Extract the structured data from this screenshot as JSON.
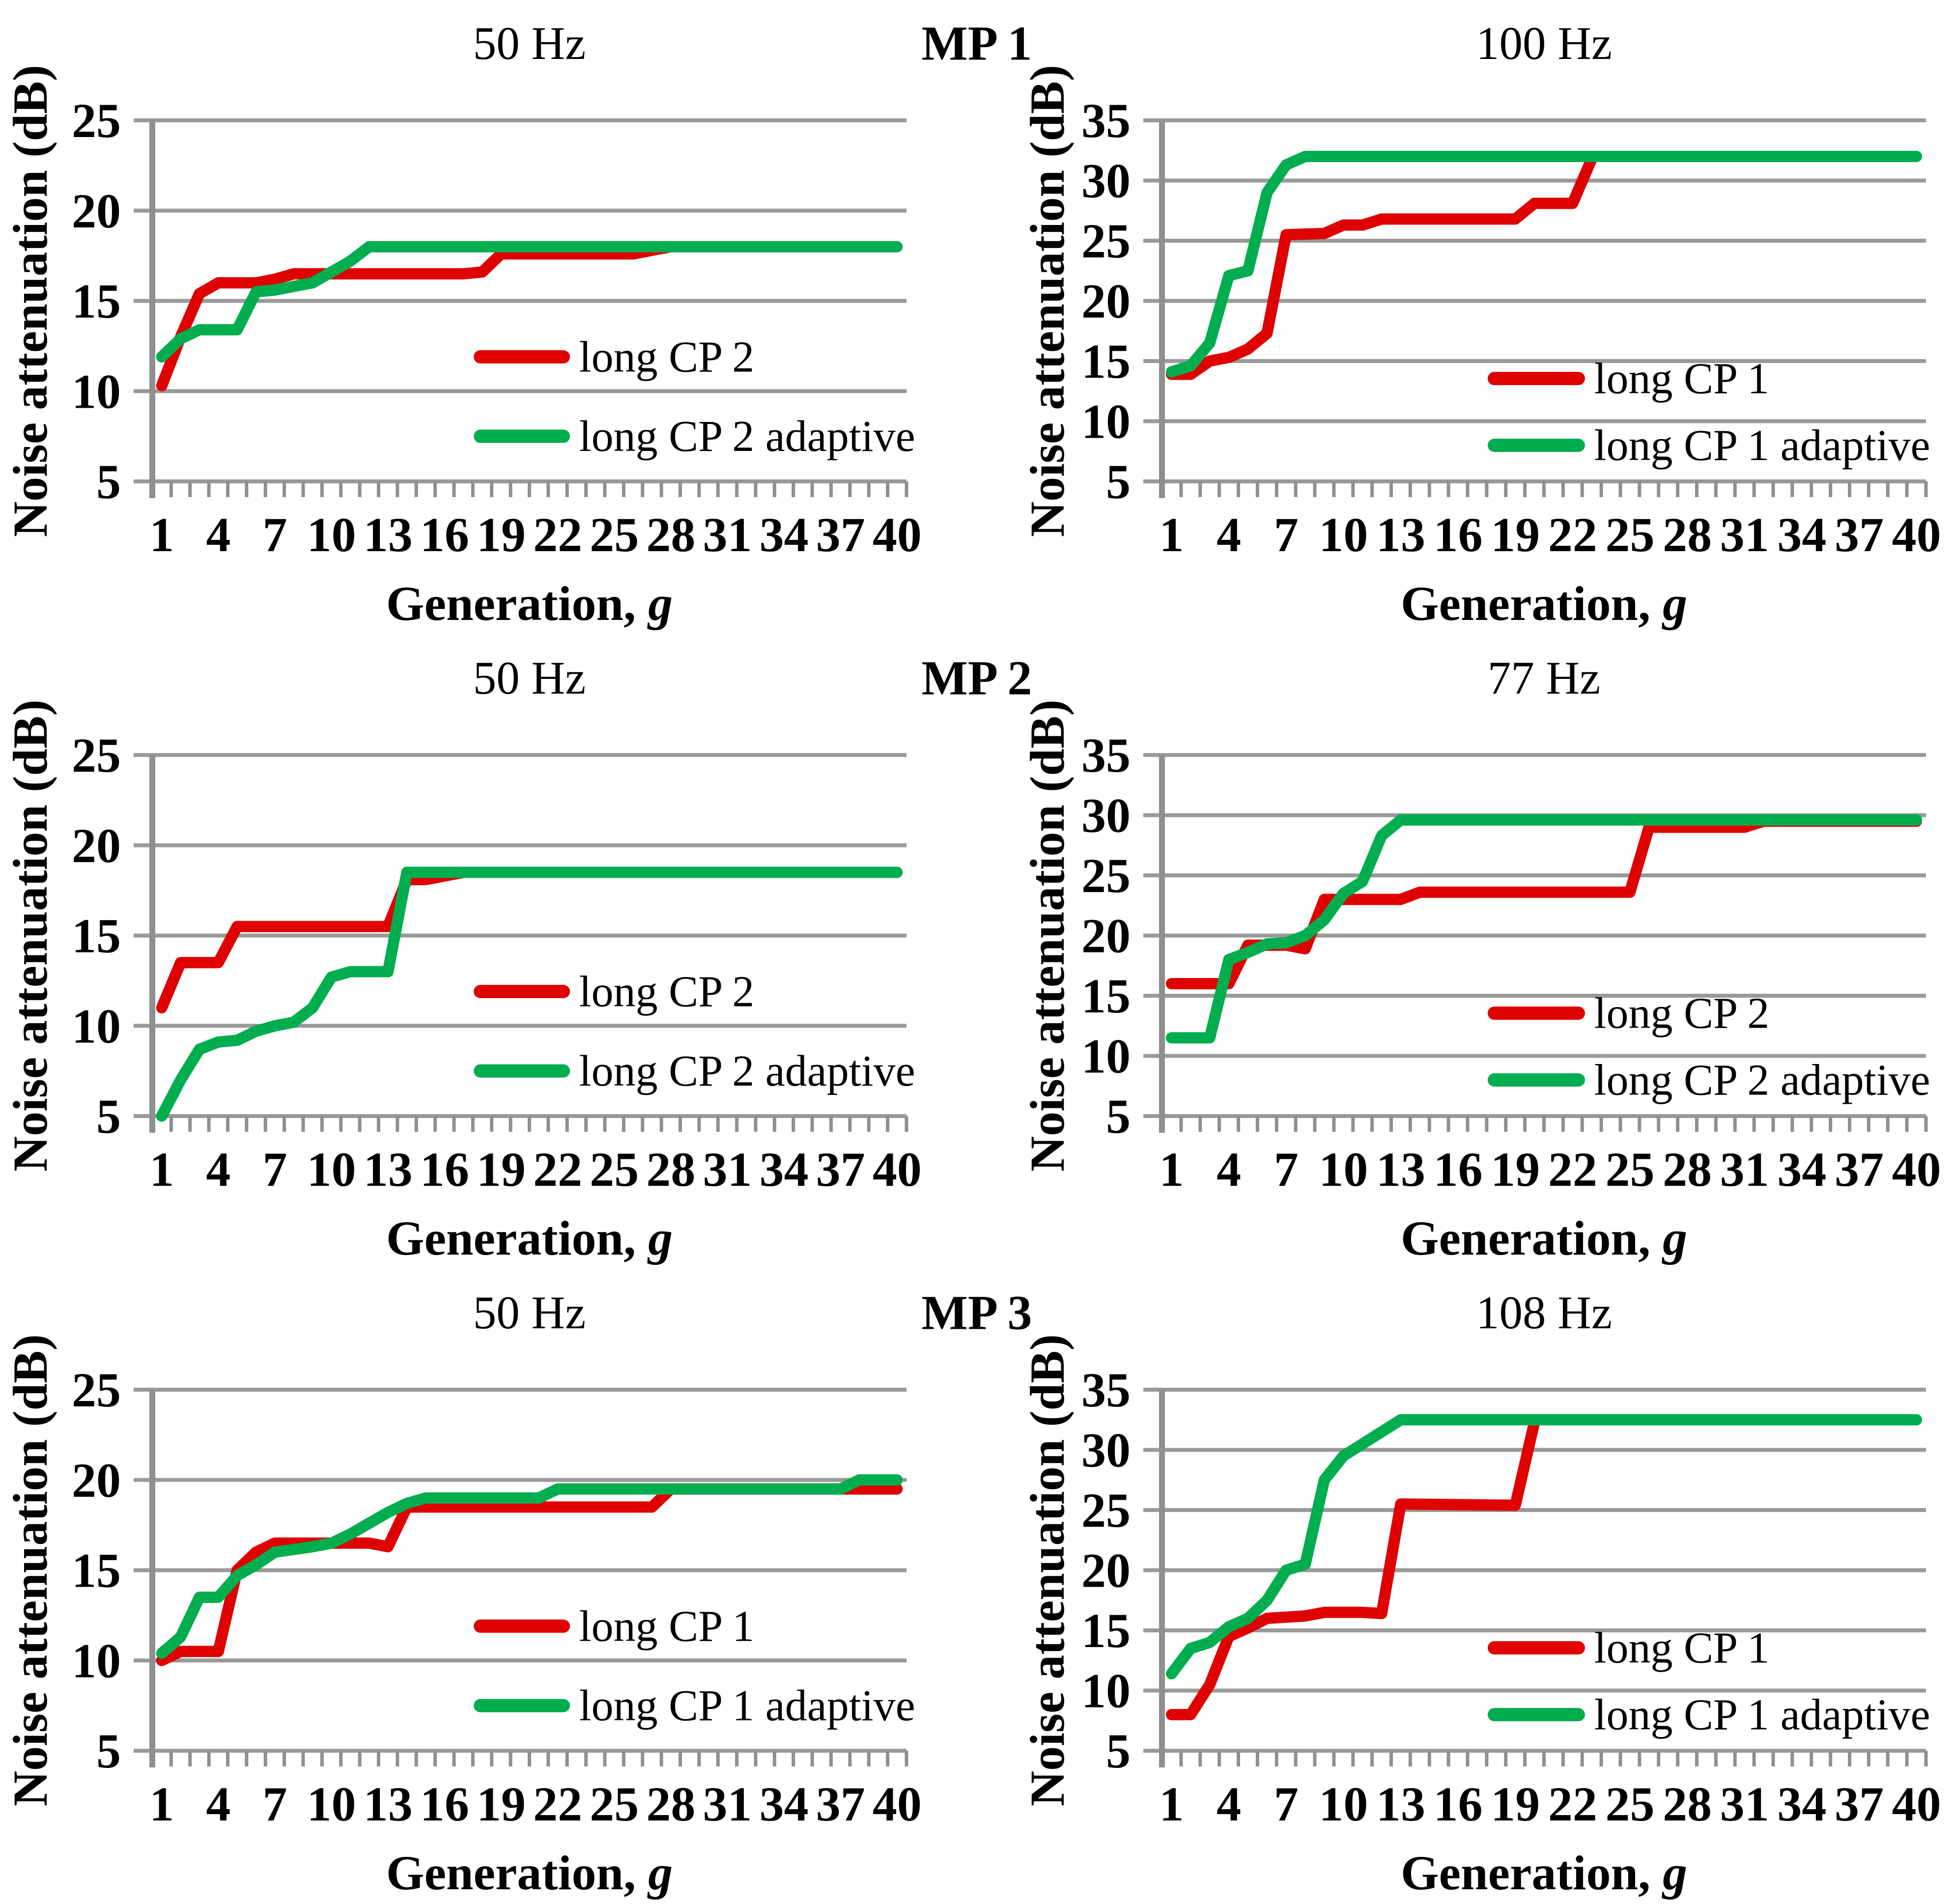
{
  "page": {
    "mp_labels": [
      "MP 1",
      "MP 2",
      "MP 3"
    ]
  },
  "colors": {
    "red": "#df0000",
    "green": "#00ad4f",
    "grid": "#999999",
    "axis": "#8f8f8f",
    "text": "#000000"
  },
  "chart_data": [
    {
      "id": "c1",
      "type": "line",
      "row": 0,
      "col": "left",
      "title": "50 Hz",
      "ylabel": "Noise attenuation (dB)",
      "xlabel": "Generation,",
      "xlabel_var": "g",
      "ylim": [
        5,
        25
      ],
      "yticks": [
        5,
        10,
        15,
        20,
        25
      ],
      "xlim": [
        1,
        40
      ],
      "xticks": [
        1,
        4,
        7,
        10,
        13,
        16,
        19,
        22,
        25,
        28,
        31,
        34,
        37,
        40
      ],
      "grid": true,
      "legend_position": "inside-lower-right",
      "series": [
        {
          "name": "long CP 2",
          "color": "red",
          "points": [
            [
              1,
              10.3
            ],
            [
              2,
              13
            ],
            [
              3,
              15.4
            ],
            [
              4,
              16
            ],
            [
              6,
              16
            ],
            [
              7,
              16.2
            ],
            [
              8,
              16.5
            ],
            [
              17,
              16.5
            ],
            [
              18,
              16.6
            ],
            [
              19,
              17.6
            ],
            [
              26,
              17.6
            ],
            [
              27,
              17.8
            ],
            [
              28,
              18
            ]
          ]
        },
        {
          "name": "long CP 2 adaptive",
          "color": "green",
          "points": [
            [
              1,
              11.9
            ],
            [
              2,
              12.9
            ],
            [
              3,
              13.4
            ],
            [
              5,
              13.4
            ],
            [
              6,
              15.5
            ],
            [
              7,
              15.6
            ],
            [
              8,
              15.8
            ],
            [
              9,
              16
            ],
            [
              10,
              16.6
            ],
            [
              11,
              17.2
            ],
            [
              12,
              18
            ],
            [
              40,
              18
            ]
          ]
        }
      ]
    },
    {
      "id": "c2",
      "type": "line",
      "row": 0,
      "col": "right",
      "title": "100 Hz",
      "ylabel": "Noise attenuation (dB)",
      "xlabel": "Generation,",
      "xlabel_var": "g",
      "ylim": [
        5,
        35
      ],
      "yticks": [
        5,
        10,
        15,
        20,
        25,
        30,
        35
      ],
      "xlim": [
        1,
        40
      ],
      "xticks": [
        1,
        4,
        7,
        10,
        13,
        16,
        19,
        22,
        25,
        28,
        31,
        34,
        37,
        40
      ],
      "grid": true,
      "legend_position": "inside-lower-right",
      "series": [
        {
          "name": "long CP 1",
          "color": "red",
          "points": [
            [
              1,
              13.9
            ],
            [
              2,
              13.9
            ],
            [
              3,
              15
            ],
            [
              4,
              15.3
            ],
            [
              5,
              16
            ],
            [
              6,
              17.3
            ],
            [
              7,
              25.5
            ],
            [
              9,
              25.6
            ],
            [
              10,
              26.3
            ],
            [
              11,
              26.3
            ],
            [
              12,
              26.8
            ],
            [
              19,
              26.8
            ],
            [
              20,
              28.1
            ],
            [
              22,
              28.1
            ],
            [
              23,
              31.8
            ]
          ]
        },
        {
          "name": "long CP 1 adaptive",
          "color": "green",
          "points": [
            [
              1,
              14.1
            ],
            [
              2,
              14.6
            ],
            [
              3,
              16.5
            ],
            [
              4,
              22.1
            ],
            [
              5,
              22.5
            ],
            [
              6,
              29
            ],
            [
              7,
              31.3
            ],
            [
              8,
              32
            ],
            [
              40,
              32
            ]
          ]
        }
      ]
    },
    {
      "id": "c3",
      "type": "line",
      "row": 1,
      "col": "left",
      "title": "50 Hz",
      "ylabel": "Noise attenuation (dB)",
      "xlabel": "Generation,",
      "xlabel_var": "g",
      "ylim": [
        5,
        25
      ],
      "yticks": [
        5,
        10,
        15,
        20,
        25
      ],
      "xlim": [
        1,
        40
      ],
      "xticks": [
        1,
        4,
        7,
        10,
        13,
        16,
        19,
        22,
        25,
        28,
        31,
        34,
        37,
        40
      ],
      "grid": true,
      "legend_position": "inside-lower-right",
      "series": [
        {
          "name": "long CP 2",
          "color": "red",
          "points": [
            [
              1,
              11
            ],
            [
              2,
              13.5
            ],
            [
              4,
              13.5
            ],
            [
              5,
              15.5
            ],
            [
              13,
              15.5
            ],
            [
              14,
              18.1
            ],
            [
              15,
              18.1
            ],
            [
              16,
              18.3
            ],
            [
              17,
              18.5
            ]
          ]
        },
        {
          "name": "long CP 2 adaptive",
          "color": "green",
          "points": [
            [
              1,
              5
            ],
            [
              2,
              7
            ],
            [
              3,
              8.7
            ],
            [
              4,
              9.1
            ],
            [
              5,
              9.2
            ],
            [
              6,
              9.7
            ],
            [
              7,
              10
            ],
            [
              8,
              10.2
            ],
            [
              9,
              11
            ],
            [
              10,
              12.7
            ],
            [
              11,
              13
            ],
            [
              13,
              13
            ],
            [
              14,
              18.5
            ],
            [
              40,
              18.5
            ]
          ]
        }
      ]
    },
    {
      "id": "c4",
      "type": "line",
      "row": 1,
      "col": "right",
      "title": "77 Hz",
      "ylabel": "Noise attenuation (dB)",
      "xlabel": "Generation,",
      "xlabel_var": "g",
      "ylim": [
        5,
        35
      ],
      "yticks": [
        5,
        10,
        15,
        20,
        25,
        30,
        35
      ],
      "xlim": [
        1,
        40
      ],
      "xticks": [
        1,
        4,
        7,
        10,
        13,
        16,
        19,
        22,
        25,
        28,
        31,
        34,
        37,
        40
      ],
      "grid": true,
      "legend_position": "inside-lower-right",
      "series": [
        {
          "name": "long CP 2",
          "color": "red",
          "points": [
            [
              1,
              16
            ],
            [
              4,
              16
            ],
            [
              5,
              19.2
            ],
            [
              7,
              19.2
            ],
            [
              8,
              18.9
            ],
            [
              9,
              23
            ],
            [
              13,
              23
            ],
            [
              14,
              23.6
            ],
            [
              25,
              23.6
            ],
            [
              26,
              29
            ],
            [
              31,
              29
            ],
            [
              32,
              29.5
            ],
            [
              40,
              29.5
            ]
          ]
        },
        {
          "name": "long CP 2 adaptive",
          "color": "green",
          "points": [
            [
              1,
              11.5
            ],
            [
              3,
              11.5
            ],
            [
              4,
              18
            ],
            [
              5,
              18.6
            ],
            [
              6,
              19.3
            ],
            [
              7,
              19.4
            ],
            [
              8,
              20
            ],
            [
              9,
              21.3
            ],
            [
              10,
              23.5
            ],
            [
              11,
              24.5
            ],
            [
              12,
              28.3
            ],
            [
              13,
              29.6
            ],
            [
              40,
              29.6
            ]
          ]
        }
      ]
    },
    {
      "id": "c5",
      "type": "line",
      "row": 2,
      "col": "left",
      "title": "50 Hz",
      "ylabel": "Noise attenuation (dB)",
      "xlabel": "Generation,",
      "xlabel_var": "g",
      "ylim": [
        5,
        25
      ],
      "yticks": [
        5,
        10,
        15,
        20,
        25
      ],
      "xlim": [
        1,
        40
      ],
      "xticks": [
        1,
        4,
        7,
        10,
        13,
        16,
        19,
        22,
        25,
        28,
        31,
        34,
        37,
        40
      ],
      "grid": true,
      "legend_position": "inside-lower-right",
      "series": [
        {
          "name": "long CP 1",
          "color": "red",
          "points": [
            [
              1,
              10
            ],
            [
              2,
              10.5
            ],
            [
              4,
              10.5
            ],
            [
              5,
              15
            ],
            [
              6,
              16
            ],
            [
              7,
              16.5
            ],
            [
              12,
              16.5
            ],
            [
              13,
              16.3
            ],
            [
              14,
              18.5
            ],
            [
              27,
              18.5
            ],
            [
              28,
              19.5
            ],
            [
              40,
              19.5
            ]
          ]
        },
        {
          "name": "long CP 1 adaptive",
          "color": "green",
          "points": [
            [
              1,
              10.4
            ],
            [
              2,
              11.3
            ],
            [
              3,
              13.5
            ],
            [
              4,
              13.5
            ],
            [
              5,
              14.7
            ],
            [
              6,
              15.3
            ],
            [
              7,
              16
            ],
            [
              9,
              16.3
            ],
            [
              10,
              16.5
            ],
            [
              11,
              17
            ],
            [
              12,
              17.6
            ],
            [
              13,
              18.2
            ],
            [
              14,
              18.7
            ],
            [
              15,
              19
            ],
            [
              21,
              19
            ],
            [
              22,
              19.5
            ],
            [
              37,
              19.5
            ],
            [
              38,
              20
            ],
            [
              40,
              20
            ]
          ]
        }
      ]
    },
    {
      "id": "c6",
      "type": "line",
      "row": 2,
      "col": "right",
      "title": "108 Hz",
      "ylabel": "Noise attenuation (dB)",
      "xlabel": "Generation,",
      "xlabel_var": "g",
      "ylim": [
        5,
        35
      ],
      "yticks": [
        5,
        10,
        15,
        20,
        25,
        30,
        35
      ],
      "xlim": [
        1,
        40
      ],
      "xticks": [
        1,
        4,
        7,
        10,
        13,
        16,
        19,
        22,
        25,
        28,
        31,
        34,
        37,
        40
      ],
      "grid": true,
      "legend_position": "inside-lower-right",
      "series": [
        {
          "name": "long CP 1",
          "color": "red",
          "points": [
            [
              1,
              8
            ],
            [
              2,
              8
            ],
            [
              3,
              10.5
            ],
            [
              4,
              14.5
            ],
            [
              5,
              15.2
            ],
            [
              6,
              16
            ],
            [
              8,
              16.2
            ],
            [
              9,
              16.5
            ],
            [
              11,
              16.5
            ],
            [
              12,
              16.4
            ],
            [
              13,
              25.5
            ],
            [
              19,
              25.4
            ],
            [
              20,
              32.3
            ]
          ]
        },
        {
          "name": "long CP 1 adaptive",
          "color": "green",
          "points": [
            [
              1,
              11.4
            ],
            [
              2,
              13.5
            ],
            [
              3,
              14
            ],
            [
              4,
              15.3
            ],
            [
              5,
              16
            ],
            [
              6,
              17.5
            ],
            [
              7,
              20
            ],
            [
              8,
              20.5
            ],
            [
              9,
              27.5
            ],
            [
              10,
              29.5
            ],
            [
              11,
              30.5
            ],
            [
              12,
              31.5
            ],
            [
              13,
              32.5
            ],
            [
              40,
              32.5
            ]
          ]
        }
      ]
    }
  ]
}
